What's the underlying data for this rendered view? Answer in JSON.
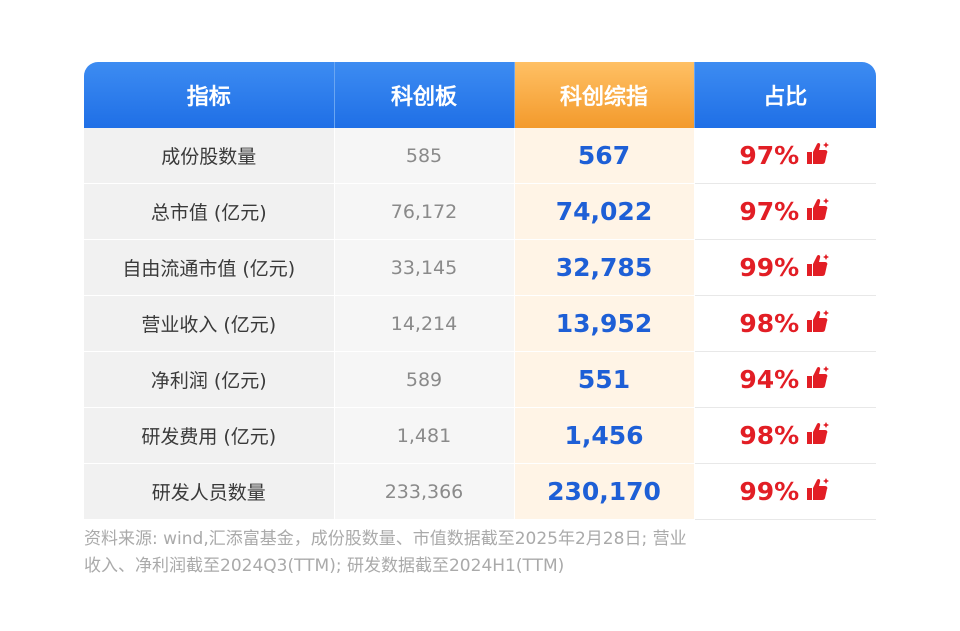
{
  "table": {
    "headers": [
      "指标",
      "科创板",
      "科创综指",
      "占比"
    ],
    "rows": [
      {
        "metric": "成份股数量",
        "kcb": "585",
        "kczz": "567",
        "ratio": "97%"
      },
      {
        "metric": "总市值 (亿元)",
        "kcb": "76,172",
        "kczz": "74,022",
        "ratio": "97%"
      },
      {
        "metric": "自由流通市值 (亿元)",
        "kcb": "33,145",
        "kczz": "32,785",
        "ratio": "99%"
      },
      {
        "metric": "营业收入 (亿元)",
        "kcb": "14,214",
        "kczz": "13,952",
        "ratio": "98%"
      },
      {
        "metric": "净利润 (亿元)",
        "kcb": "589",
        "kczz": "551",
        "ratio": "94%"
      },
      {
        "metric": "研发费用 (亿元)",
        "kcb": "1,481",
        "kczz": "1,456",
        "ratio": "98%"
      },
      {
        "metric": "研发人员数量",
        "kcb": "233,366",
        "kczz": "230,170",
        "ratio": "99%"
      }
    ]
  },
  "source": {
    "line1": "资料来源: wind,汇添富基金，成份股数量、市值数据截至2025年2月28日; 营业",
    "line2": "收入、净利润截至2024Q3(TTM); 研发数据截至2024H1(TTM)"
  },
  "colors": {
    "header_blue": "#1f6fe6",
    "header_orange": "#f39a2c",
    "value_blue": "#1e5fd6",
    "ratio_red": "#e21e25"
  },
  "icons": {
    "ratio": "thumbs-up-icon"
  }
}
